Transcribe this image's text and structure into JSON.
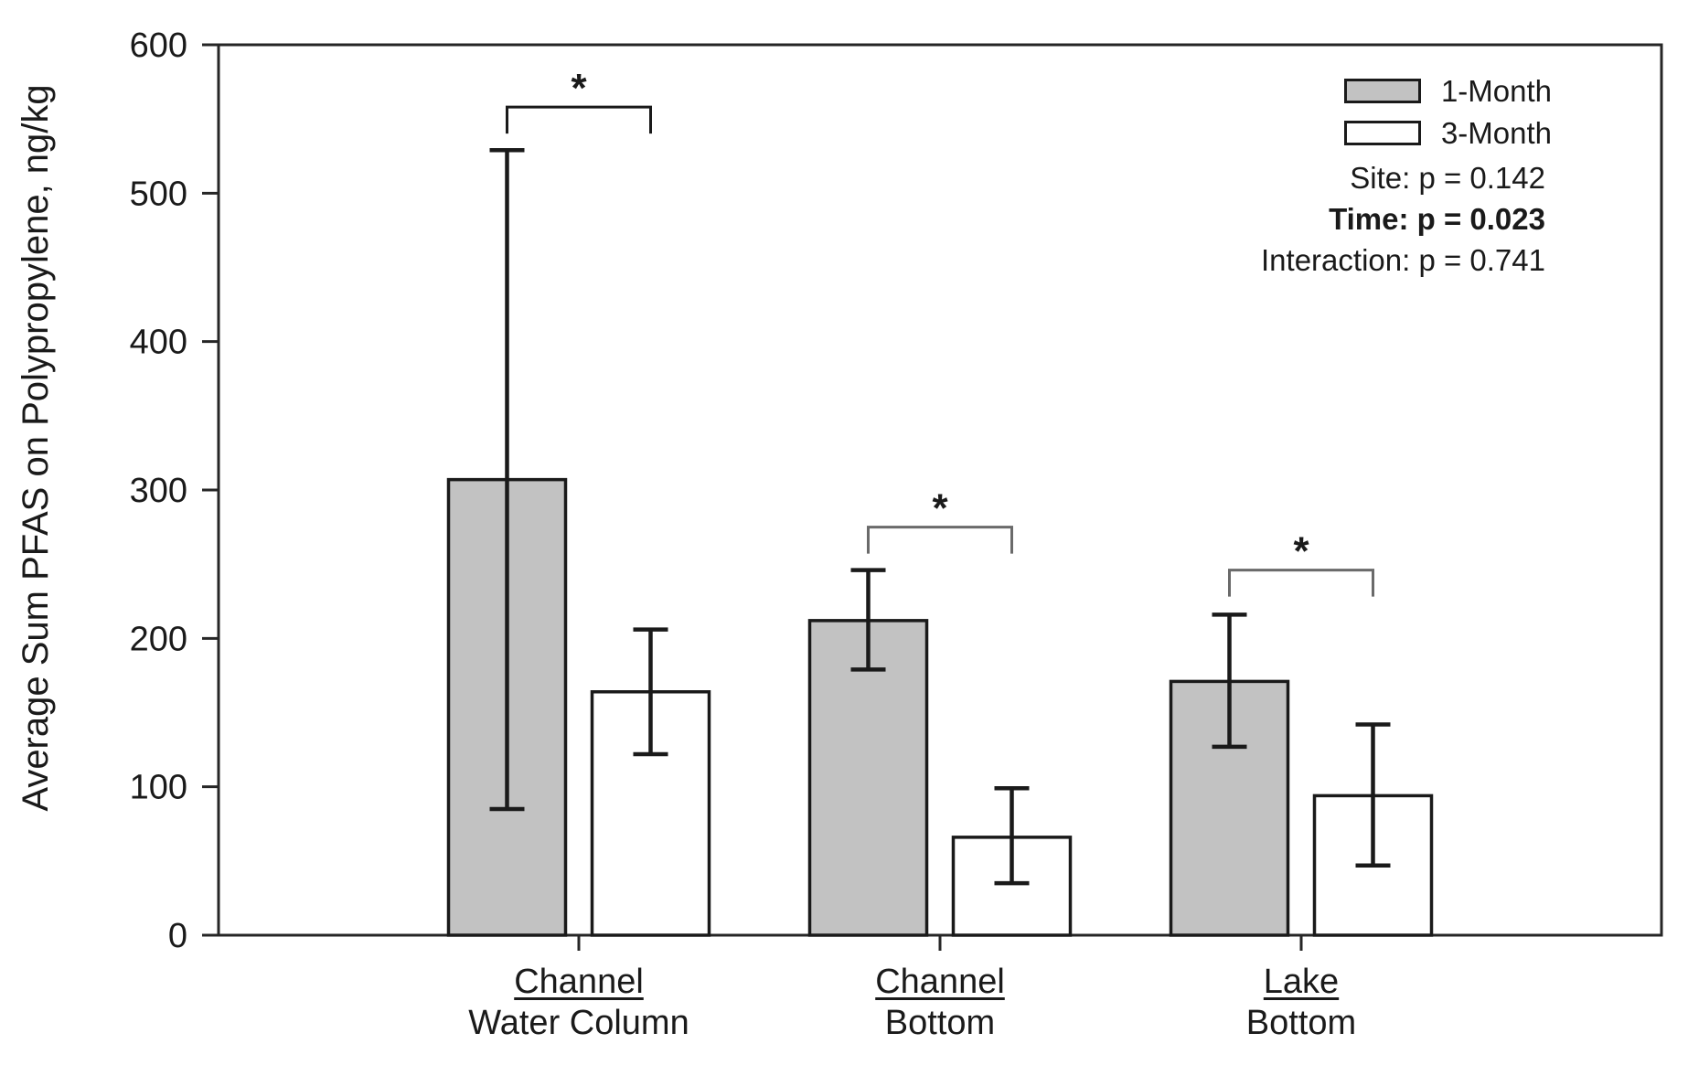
{
  "chart_data": {
    "type": "bar",
    "title": "",
    "ylabel": "Average Sum PFAS on Polypropylene, ng/kg",
    "xlabel": "",
    "ylim": [
      0,
      600
    ],
    "yticks": [
      0,
      100,
      200,
      300,
      400,
      500,
      600
    ],
    "grid": false,
    "legend_position": "top-right",
    "categories": [
      {
        "line1": "Channel",
        "line2": "Water Column"
      },
      {
        "line1": "Channel",
        "line2": "Bottom"
      },
      {
        "line1": "Lake",
        "line2": "Bottom"
      }
    ],
    "series": [
      {
        "name": "1-Month",
        "fill": "#c2c2c2",
        "values": [
          307,
          212,
          171
        ],
        "err_plus": [
          222,
          34,
          45
        ],
        "err_minus": [
          222,
          33,
          44
        ]
      },
      {
        "name": "3-Month",
        "fill": "#ffffff",
        "values": [
          164,
          66,
          94
        ],
        "err_plus": [
          42,
          33,
          48
        ],
        "err_minus": [
          42,
          31,
          47
        ]
      }
    ],
    "significance": [
      {
        "group": 0,
        "label": "*",
        "y": 558,
        "stroke": "#1a1a1a"
      },
      {
        "group": 1,
        "label": "*",
        "y": 275,
        "stroke": "#6a6a6a"
      },
      {
        "group": 2,
        "label": "*",
        "y": 246,
        "stroke": "#6a6a6a"
      }
    ],
    "stats": [
      {
        "text": "Site: p = 0.142",
        "bold": false
      },
      {
        "text": "Time: p = 0.023",
        "bold": true
      },
      {
        "text": "Interaction: p = 0.741",
        "bold": false
      }
    ]
  },
  "colors": {
    "axis": "#262626",
    "bar_border": "#1a1a1a",
    "error_bar": "#1a1a1a",
    "text": "#1a1a1a",
    "background": "#ffffff"
  }
}
